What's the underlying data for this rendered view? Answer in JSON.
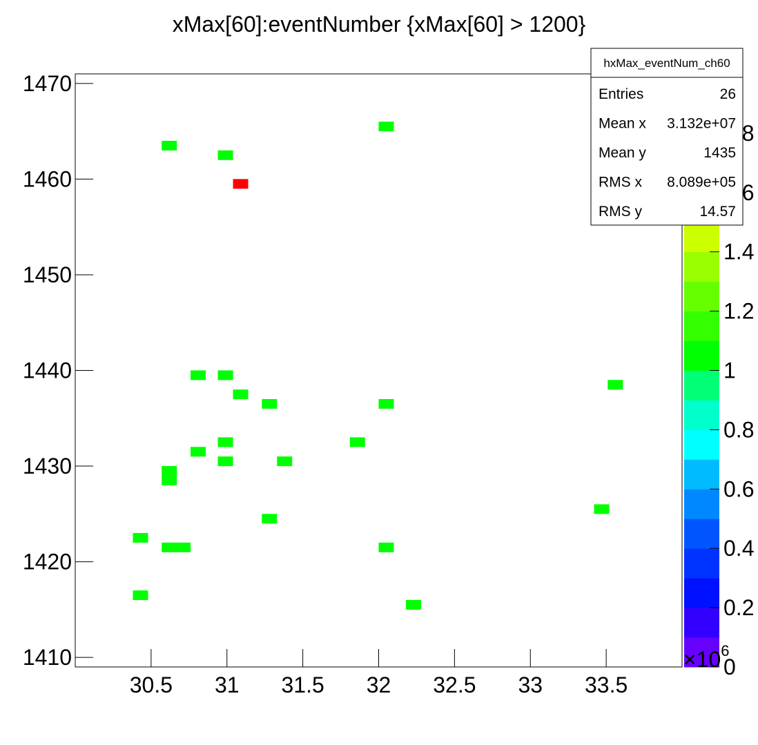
{
  "chart_data": {
    "type": "histogram2d",
    "title": "xMax[60]:eventNumber  {xMax[60] > 1200}",
    "x": [
      32.05,
      30.62,
      30.99,
      31.09,
      30.81,
      30.99,
      31.09,
      31.28,
      32.05,
      33.56,
      30.99,
      31.86,
      30.81,
      30.99,
      31.38,
      30.62,
      30.62,
      33.47,
      31.28,
      30.43,
      30.62,
      30.71,
      32.05,
      30.43,
      32.23
    ],
    "y": [
      1465.5,
      1463.5,
      1462.5,
      1459.5,
      1439.5,
      1439.5,
      1437.5,
      1436.5,
      1436.5,
      1438.5,
      1432.5,
      1432.5,
      1431.5,
      1430.5,
      1430.5,
      1429.5,
      1428.5,
      1425.5,
      1424.5,
      1422.5,
      1421.5,
      1421.5,
      1421.5,
      1416.5,
      1415.5
    ],
    "z": [
      1,
      1,
      1,
      2,
      1,
      1,
      1,
      1,
      1,
      1,
      1,
      1,
      1,
      1,
      1,
      1,
      1,
      1,
      1,
      1,
      1,
      1,
      1,
      1,
      1
    ],
    "xlim": [
      30,
      34
    ],
    "xticks": [
      30.5,
      31,
      31.5,
      32,
      32.5,
      33,
      33.5
    ],
    "x_multiplier": {
      "base": "×10",
      "exponent": "6"
    },
    "ylim": [
      1409,
      1471
    ],
    "yticks": [
      1410,
      1420,
      1430,
      1440,
      1450,
      1460,
      1470
    ],
    "zlim": [
      0,
      2
    ],
    "zticks": [
      0,
      0.2,
      0.4,
      0.6,
      0.8,
      1,
      1.2,
      1.4,
      1.6,
      1.8
    ],
    "palette": [
      "#6600ff",
      "#3300ff",
      "#0011ff",
      "#0033ff",
      "#0055ff",
      "#0088ff",
      "#00bbff",
      "#00ffff",
      "#00ffcc",
      "#00ff77",
      "#00ff00",
      "#33ff00",
      "#66ff00",
      "#99ff00",
      "#ccff00",
      "#ffff00",
      "#ffcc00",
      "#ff9900",
      "#ff5500",
      "#ff0000"
    ],
    "stats": {
      "name": "hxMax_eventNum_ch60",
      "rows": [
        {
          "label": "Entries",
          "value": 26
        },
        {
          "label": "Mean x",
          "value": "3.132e+07"
        },
        {
          "label": "Mean y",
          "value": 1435
        },
        {
          "label": "RMS x",
          "value": "8.089e+05"
        },
        {
          "label": "RMS y",
          "value": 14.57
        }
      ]
    }
  }
}
